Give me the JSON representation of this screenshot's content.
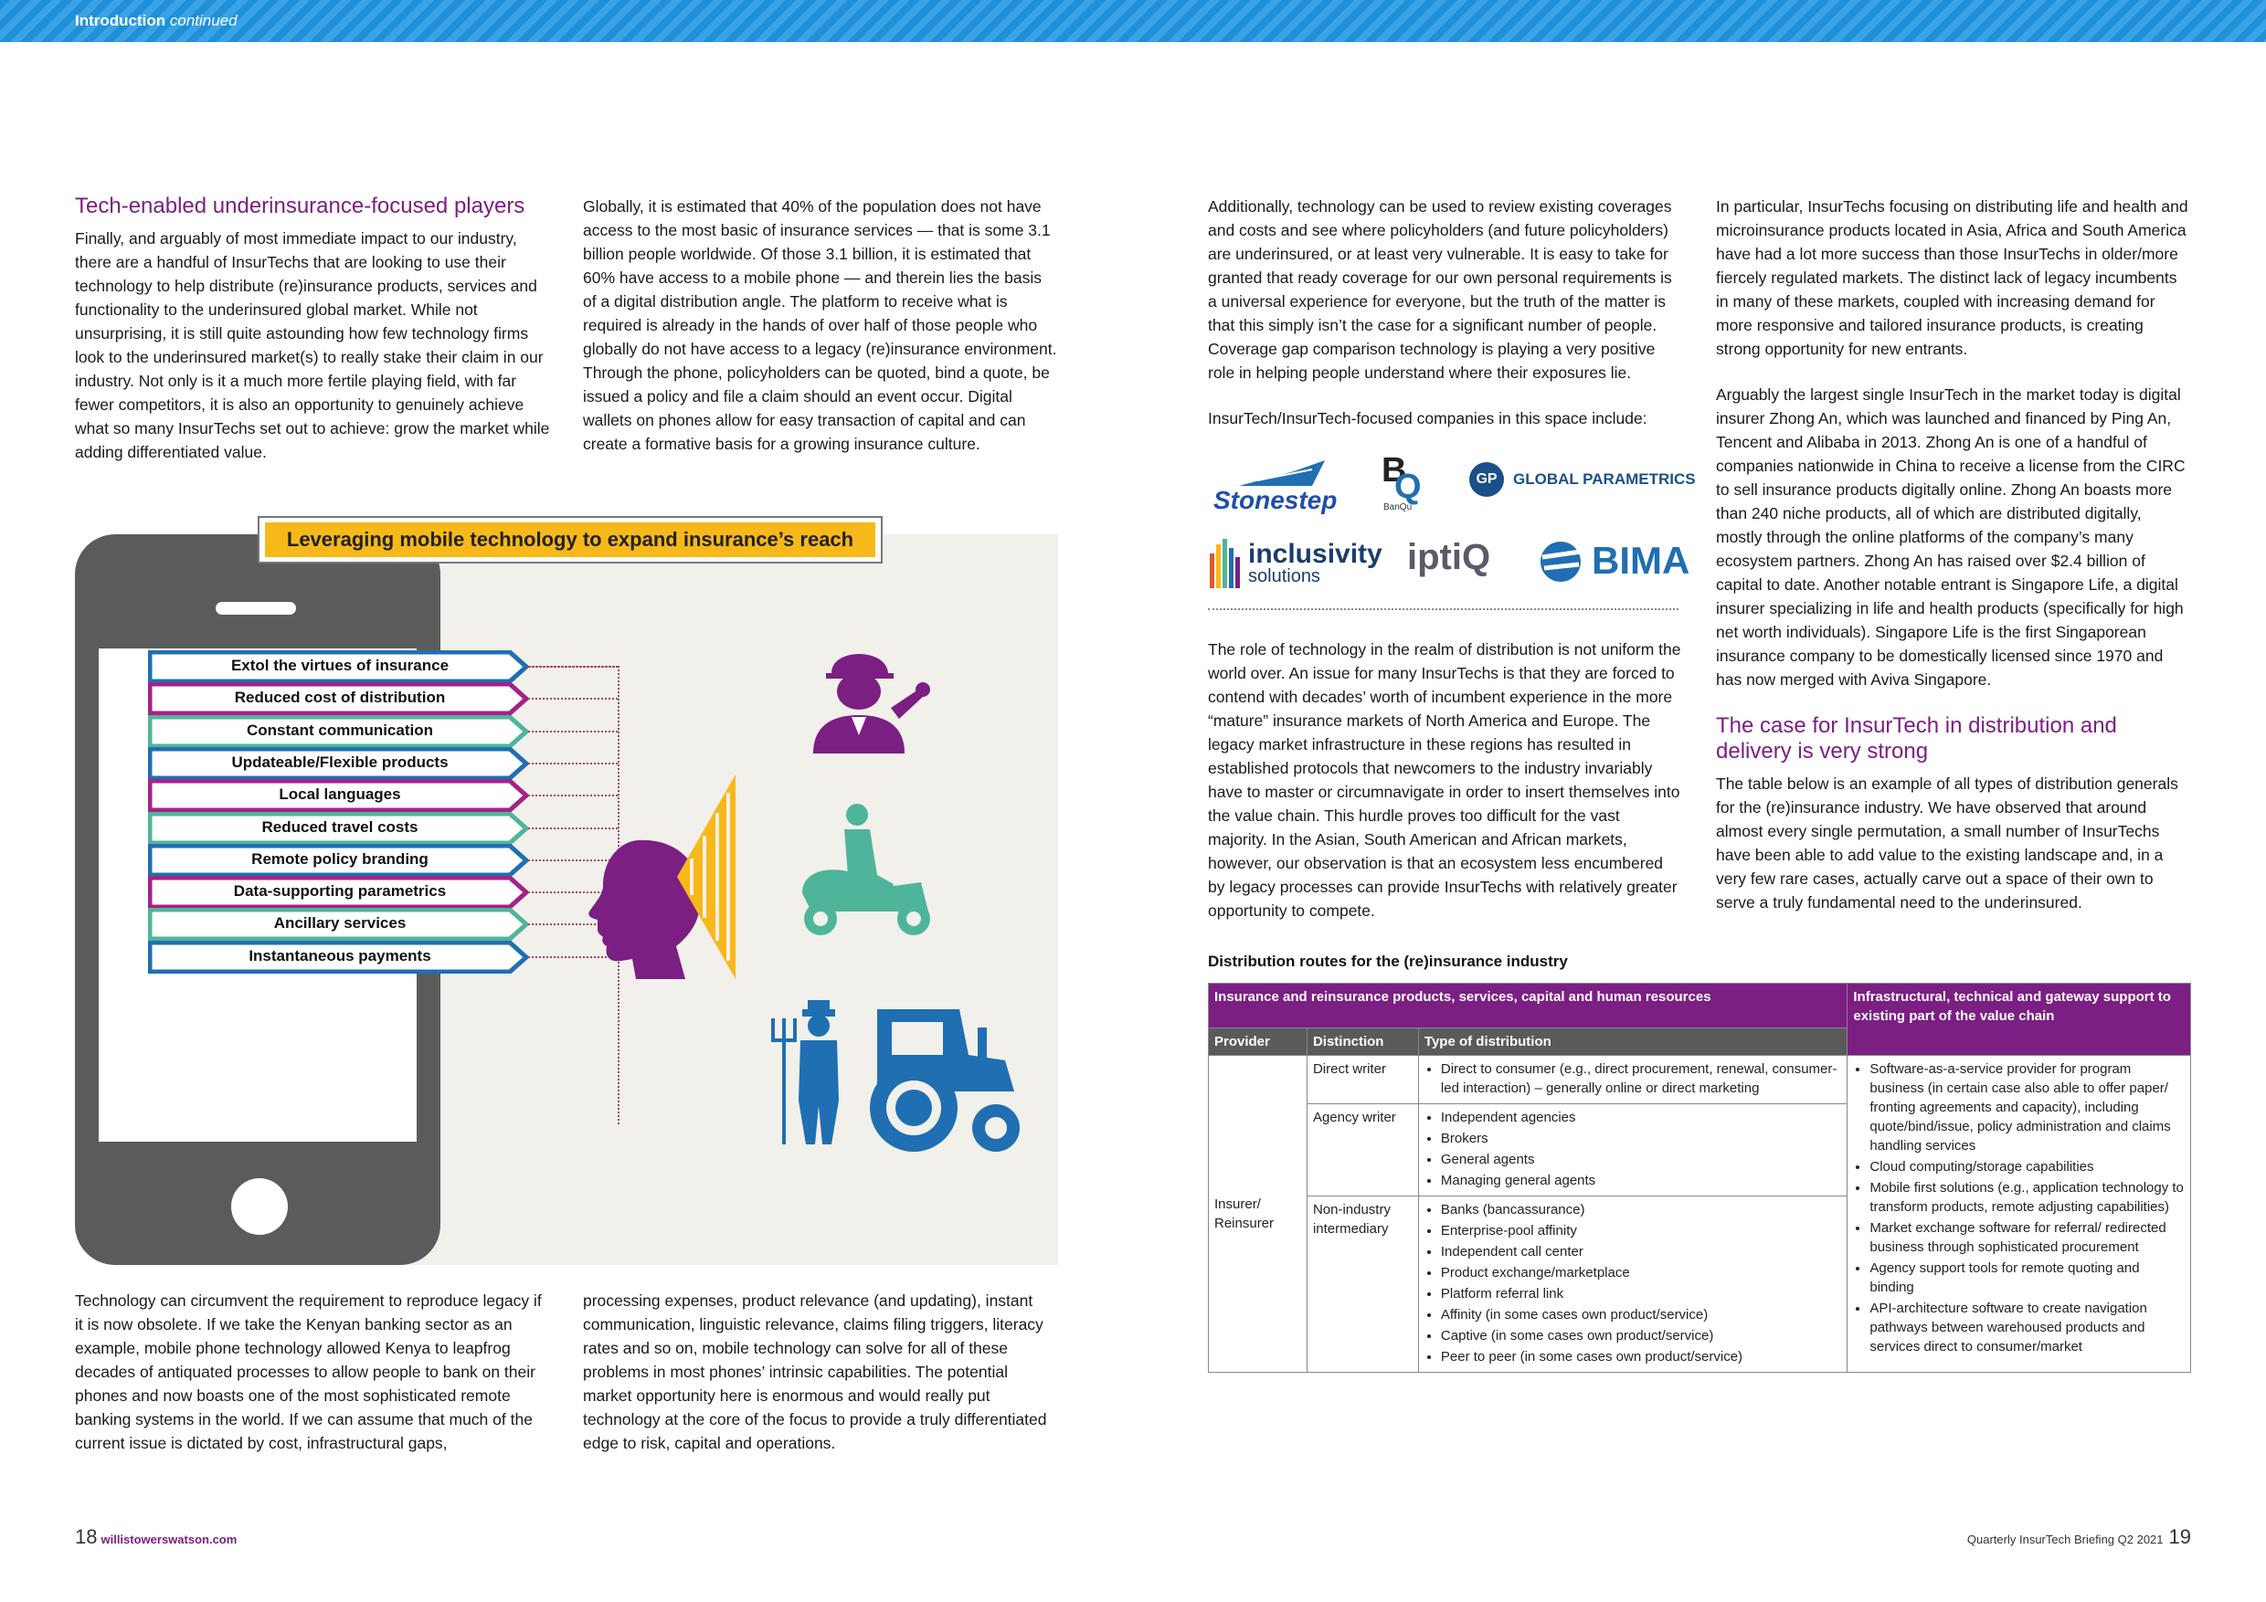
{
  "header": {
    "section": "Introduction",
    "continued": "continued"
  },
  "left_col1": {
    "heading": "Tech-enabled underinsurance-focused players",
    "para": "Finally, and arguably of most immediate impact to our industry, there are a handful of InsurTechs that are looking to use their technology to help distribute (re)insurance products, services and functionality to the underinsured global market. While not unsurprising, it is still quite astounding how few technology firms look to the underinsured market(s) to really stake their claim in our industry. Not only is it a much more fertile playing field, with far fewer competitors, it is also an opportunity to genuinely achieve what so many InsurTechs set out to achieve: grow the market while adding differentiated value."
  },
  "left_col2": {
    "para": "Globally, it is estimated that 40% of the population does not have access to the most basic of insurance services — that is some 3.1 billion people worldwide. Of those 3.1 billion, it is estimated that 60% have access to a mobile phone — and therein lies the basis of a digital distribution angle. The platform to receive what is required is already in the hands of over half of those people who globally do not have access to a legacy (re)insurance environment. Through the phone, policyholders can be quoted, bind a quote, be issued a policy and file a claim should an event occur. Digital wallets on phones allow for easy transaction of capital and can create a formative basis for a growing insurance culture."
  },
  "infographic": {
    "title": "Leveraging mobile technology to expand insurance’s reach",
    "items": [
      {
        "label": "Extol the virtues of insurance",
        "color": "#1f6fb2"
      },
      {
        "label": "Reduced cost of distribution",
        "color": "#a3228a"
      },
      {
        "label": "Constant communication",
        "color": "#4fb59a"
      },
      {
        "label": "Updateable/Flexible products",
        "color": "#1f6fb2"
      },
      {
        "label": "Local languages",
        "color": "#a3228a"
      },
      {
        "label": "Reduced travel costs",
        "color": "#4fb59a"
      },
      {
        "label": "Remote policy branding",
        "color": "#1f6fb2"
      },
      {
        "label": "Data-supporting parametrics",
        "color": "#a3228a"
      },
      {
        "label": "Ancillary services",
        "color": "#4fb59a"
      },
      {
        "label": "Instantaneous payments",
        "color": "#1f6fb2"
      }
    ]
  },
  "bottom_left1": {
    "para": "Technology can circumvent the requirement to reproduce legacy if it is now obsolete. If we take the Kenyan banking sector as an example, mobile phone technology allowed Kenya to leapfrog decades of antiquated processes to allow people to bank on their phones and now boasts one of the most sophisticated remote banking systems in the world. If we can assume that much of the current issue is dictated by cost, infrastructural gaps,"
  },
  "bottom_left2": {
    "para": "processing expenses, product relevance (and updating), instant communication, linguistic relevance, claims filing triggers, literacy rates and so on, mobile technology can solve for all of these problems in most phones’ intrinsic capabilities. The potential market opportunity here is enormous and would really put technology at the core of the focus to provide a truly differentiated edge to risk, capital and operations."
  },
  "right_col1": {
    "para1": "Additionally, technology can be used to review existing coverages and costs and see where policyholders (and future policyholders) are underinsured, or at least very vulnerable. It is easy to take for granted that ready coverage for our own personal requirements is a universal experience for everyone, but the truth of the matter is that this simply isn’t the case for a significant number of people. Coverage gap comparison technology is playing a very positive role in helping people understand where their exposures lie.",
    "para2": "InsurTech/InsurTech-focused companies in this space include:",
    "para3": "The role of technology in the realm of distribution is not uniform the world over. An issue for many InsurTechs is that they are forced to contend with decades’ worth of incumbent experience in the more “mature” insurance markets of North America and Europe. The legacy market infrastructure in these regions has resulted in established protocols that newcomers to the industry invariably have to master or circumnavigate in order to insert themselves into the value chain. This hurdle proves too difficult for the vast majority. In the Asian, South American and African markets, however, our observation is that an ecosystem less encumbered by legacy processes can provide InsurTechs with relatively greater opportunity to compete."
  },
  "logos": {
    "stonestep": "Stonestep",
    "banqu": "BanQu",
    "gp_mark": "GP",
    "global_parametrics": "GLOBAL PARAMETRICS",
    "inclusivity": "inclusivity",
    "inclusivity_sub": "solutions",
    "iptiq": "iptiQ",
    "bima": "BIMA"
  },
  "right_col2": {
    "para1": "In particular, InsurTechs focusing on distributing life and health and microinsurance products located in Asia, Africa and South America have had a lot more success than those InsurTechs in older/more fiercely regulated markets. The distinct lack of legacy incumbents in many of these markets, coupled with increasing demand for more responsive and tailored insurance products, is creating strong opportunity for new entrants.",
    "para2": "Arguably the largest single InsurTech in the market today is digital insurer Zhong An, which was launched and financed by Ping An, Tencent and Alibaba in 2013. Zhong An is one of a handful of companies nationwide in China to receive a license from the CIRC to sell insurance products digitally online. Zhong An boasts more than 240 niche products, all of which are distributed digitally, mostly through the online platforms of the company’s many ecosystem partners. Zhong An has raised over $2.4 billion of capital to date. Another notable entrant is Singapore Life, a digital insurer specializing in life and health products (specifically for high net worth individuals). Singapore Life is the first Singaporean insurance company to be domestically licensed since 1970 and has now merged with Aviva Singapore.",
    "heading": "The case for InsurTech in distribution and delivery is very strong",
    "para3": "The table below is an example of all types of distribution generals for the (re)insurance industry. We have observed that around almost every single permutation, a small number of InsurTechs have been able to add value to the existing landscape and, in a very few rare cases, actually carve out a space of their own to serve a truly fundamental need to the underinsured."
  },
  "table": {
    "title": "Distribution routes for the (re)insurance industry",
    "head_left": "Insurance and reinsurance products, services, capital and human resources",
    "head_right": "Infrastructural, technical and gateway support to existing part of the value chain",
    "col_provider": "Provider",
    "col_distinction": "Distinction",
    "col_type": "Type of distribution",
    "provider": "Insurer/ Reinsurer",
    "rows": [
      {
        "distinction": "Direct writer",
        "types": [
          "Direct to consumer (e.g., direct procurement, renewal, consumer-led interaction) – generally online or direct marketing"
        ]
      },
      {
        "distinction": "Agency writer",
        "types": [
          "Independent agencies",
          "Brokers",
          "General agents",
          "Managing general agents"
        ]
      },
      {
        "distinction": "Non-industry intermediary",
        "types": [
          "Banks (bancassurance)",
          "Enterprise-pool affinity",
          "Independent call center",
          "Product exchange/marketplace",
          "Platform referral link",
          "Affinity (in some cases own product/service)",
          "Captive (in some cases own product/service)",
          "Peer to peer (in some cases own product/service)"
        ]
      }
    ],
    "infra": [
      "Software-as-a-service provider for program business (in certain case also able to offer paper/ fronting agreements and capacity), including quote/bind/issue, policy administration and claims handling services",
      "Cloud computing/storage capabilities",
      "Mobile first solutions (e.g., application technology to transform products, remote adjusting capabilities)",
      "Market exchange software for referral/ redirected business through sophisticated procurement",
      "Agency support tools for remote quoting and binding",
      "API-architecture software to create navigation pathways between warehoused products and services direct to consumer/market"
    ]
  },
  "footer": {
    "page_left": "18",
    "site": "willistowerswatson.com",
    "pub": "Quarterly InsurTech Briefing Q2 2021",
    "page_right": "19"
  }
}
